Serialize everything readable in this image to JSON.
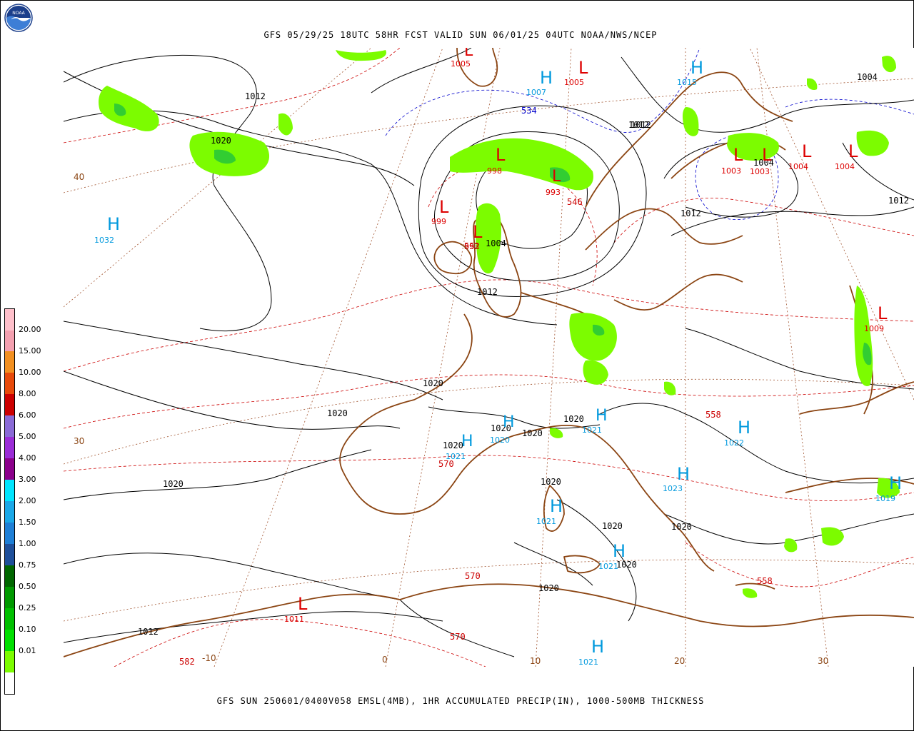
{
  "header": {
    "title": "GFS 05/29/25 18UTC 58HR FCST VALID SUN 06/01/25 04UTC NOAA/NWS/NCEP",
    "logo_text": "NOAA"
  },
  "footer": {
    "caption": "GFS SUN 250601/0400V058 EMSL(4MB), 1HR ACCUMULATED PRECIP(IN), 1000-500MB THICKNESS"
  },
  "colors": {
    "coast": "#8b4513",
    "isobar": "#000000",
    "thickness_red": "#cc0000",
    "thickness_blue": "#0000cc",
    "precip_light": "#7cfc00",
    "precip_mid": "#32cd32",
    "high_label": "#0099dd",
    "low_label": "#dd0000",
    "gridline": "#a0522d"
  },
  "legend": {
    "scale": [
      {
        "label": "",
        "color": "#ffffff"
      },
      {
        "label": "0.01",
        "color": "#7cfc00"
      },
      {
        "label": "0.10",
        "color": "#00e000"
      },
      {
        "label": "0.25",
        "color": "#00c000"
      },
      {
        "label": "0.50",
        "color": "#009900"
      },
      {
        "label": "0.75",
        "color": "#006600"
      },
      {
        "label": "1.00",
        "color": "#1e4f9a"
      },
      {
        "label": "1.50",
        "color": "#1e7fd6"
      },
      {
        "label": "2.00",
        "color": "#1aa8e8"
      },
      {
        "label": "3.00",
        "color": "#00e5ff"
      },
      {
        "label": "4.00",
        "color": "#8b008b"
      },
      {
        "label": "5.00",
        "color": "#9a2cd6"
      },
      {
        "label": "6.00",
        "color": "#8a6ad6"
      },
      {
        "label": "8.00",
        "color": "#cc0000"
      },
      {
        "label": "10.00",
        "color": "#e84a0a"
      },
      {
        "label": "15.00",
        "color": "#f39020"
      },
      {
        "label": "20.00",
        "color": "#f4a0b0"
      },
      {
        "label": "",
        "color": "#ffc0cb"
      }
    ]
  },
  "map": {
    "highs": [
      {
        "name": "high-azores",
        "value": "1032"
      },
      {
        "name": "high-norway-sea",
        "value": "1007"
      },
      {
        "name": "high-barents",
        "value": "1015"
      },
      {
        "name": "high-france",
        "value": "1021"
      },
      {
        "name": "high-gulf-lion",
        "value": "1020"
      },
      {
        "name": "high-alps",
        "value": "1021"
      },
      {
        "name": "high-romania",
        "value": "1022"
      },
      {
        "name": "high-balkans",
        "value": "1023"
      },
      {
        "name": "high-sardinia",
        "value": "1021"
      },
      {
        "name": "high-sicily",
        "value": "1021"
      },
      {
        "name": "high-libya",
        "value": "1021"
      },
      {
        "name": "high-turkey",
        "value": "1019"
      }
    ],
    "lows": [
      {
        "name": "low-north-top",
        "value": "1005"
      },
      {
        "name": "low-norway-sea",
        "value": "1005"
      },
      {
        "name": "low-north-sea",
        "value": "998"
      },
      {
        "name": "low-ireland-west",
        "value": "999"
      },
      {
        "name": "low-scotland",
        "value": "993"
      },
      {
        "name": "low-norway",
        "value": "993"
      },
      {
        "name": "low-finland-1",
        "value": "1003"
      },
      {
        "name": "low-finland-2",
        "value": "1003"
      },
      {
        "name": "low-russia-1",
        "value": "1004"
      },
      {
        "name": "low-russia-2",
        "value": "1004"
      },
      {
        "name": "low-caspian",
        "value": "1009"
      },
      {
        "name": "low-morocco",
        "value": "1011"
      }
    ],
    "isobars": [
      "1012",
      "1020",
      "1012",
      "1012",
      "1004",
      "1012",
      "1004",
      "1012",
      "1004",
      "1012",
      "1020",
      "1020",
      "1020",
      "1020",
      "1020",
      "1020",
      "1020",
      "1020",
      "1020",
      "1020",
      "1020",
      "1020",
      "1012"
    ],
    "thickness": [
      "534",
      "546",
      "552",
      "570",
      "558",
      "570",
      "570",
      "558",
      "582"
    ],
    "grid": [
      "40",
      "30",
      "-10",
      "0",
      "10",
      "20",
      "30"
    ]
  }
}
